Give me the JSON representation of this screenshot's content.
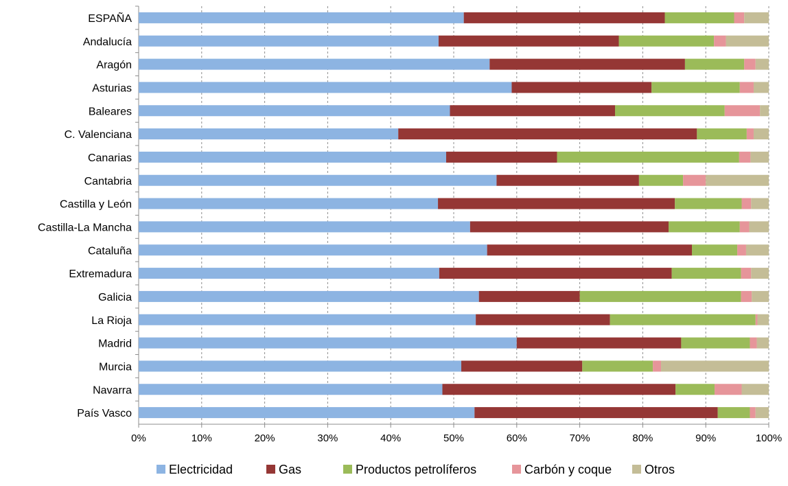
{
  "chart_data": {
    "type": "bar",
    "orientation": "horizontal",
    "stacked": true,
    "title": "",
    "xlabel": "",
    "ylabel": "",
    "xlim": [
      0,
      100
    ],
    "grid": true,
    "legend_position": "bottom",
    "categories": [
      "ESPAÑA",
      "Andalucía",
      "Aragón",
      "Asturias",
      "Baleares",
      "C. Valenciana",
      "Canarias",
      "Cantabria",
      "Castilla y León",
      "Castilla-La Mancha",
      "Cataluña",
      "Extremadura",
      "Galicia",
      "La Rioja",
      "Madrid",
      "Murcia",
      "Navarra",
      "País Vasco"
    ],
    "x_ticks": [
      "0%",
      "10%",
      "20%",
      "30%",
      "40%",
      "50%",
      "60%",
      "70%",
      "80%",
      "90%",
      "100%"
    ],
    "series": [
      {
        "name": "Electricidad",
        "color": "#8db4e2",
        "values": [
          51.6,
          47.6,
          55.7,
          59.2,
          49.4,
          41.2,
          48.8,
          56.8,
          47.5,
          52.6,
          55.3,
          47.7,
          54.0,
          53.5,
          60.0,
          51.2,
          48.2,
          53.3
        ]
      },
      {
        "name": "Gas",
        "color": "#953735",
        "values": [
          31.9,
          28.6,
          31.0,
          22.2,
          26.2,
          47.4,
          17.6,
          22.6,
          37.6,
          31.5,
          32.5,
          36.9,
          16.0,
          21.3,
          26.1,
          19.2,
          37.0,
          38.6
        ]
      },
      {
        "name": "Productos petrolíferos",
        "color": "#9bbb59",
        "values": [
          11.0,
          15.1,
          9.4,
          14.0,
          17.4,
          7.9,
          28.9,
          7.0,
          10.6,
          11.3,
          7.2,
          11.0,
          25.6,
          23.1,
          10.9,
          11.2,
          6.2,
          5.1
        ]
      },
      {
        "name": "Carbón y coque",
        "color": "#e6959a",
        "values": [
          1.6,
          1.9,
          1.8,
          2.2,
          5.6,
          1.1,
          1.8,
          3.6,
          1.5,
          1.5,
          1.4,
          1.6,
          1.7,
          0.3,
          1.1,
          1.3,
          4.3,
          0.9
        ]
      },
      {
        "name": "Otros",
        "color": "#c4bd97",
        "values": [
          3.9,
          6.8,
          2.1,
          2.4,
          1.4,
          2.4,
          2.9,
          10.0,
          2.8,
          3.1,
          3.6,
          2.8,
          2.7,
          1.8,
          1.9,
          17.1,
          4.3,
          2.1
        ]
      }
    ]
  }
}
